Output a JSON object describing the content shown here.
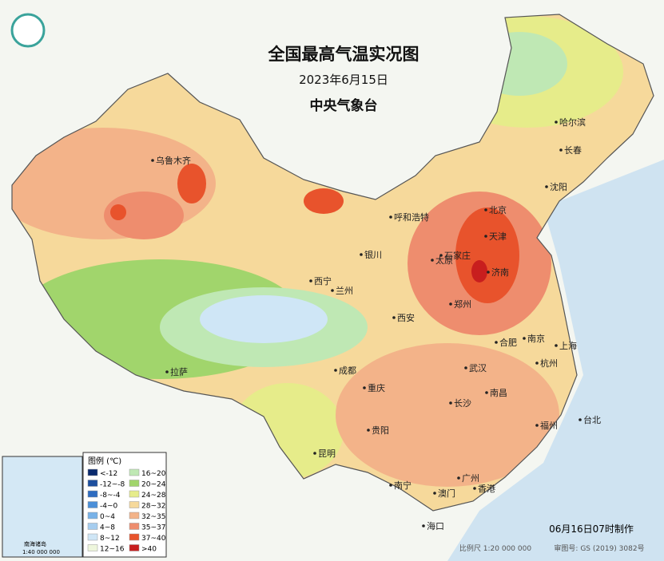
{
  "header": {
    "title": "全国最高气温实况图",
    "date": "2023年6月15日",
    "agency": "中央气象台"
  },
  "cities": [
    "哈尔滨",
    "长春",
    "沈阳",
    "乌鲁木齐",
    "呼和浩特",
    "北京",
    "天津",
    "银川",
    "太原",
    "石家庄",
    "西宁",
    "兰州",
    "济南",
    "郑州",
    "西安",
    "合肥",
    "南京",
    "上海",
    "拉萨",
    "武汉",
    "杭州",
    "成都",
    "重庆",
    "南昌",
    "长沙",
    "贵阳",
    "福州",
    "台北",
    "昆明",
    "南宁",
    "广州",
    "香港",
    "澳门",
    "海口"
  ],
  "legend": {
    "title": "图例 (℃)",
    "items": [
      {
        "label": "<-12",
        "color": "#0a2a6e"
      },
      {
        "label": "-12~-8",
        "color": "#1d4f9e"
      },
      {
        "label": "-8~-4",
        "color": "#2e6cc0"
      },
      {
        "label": "-4~0",
        "color": "#4b8fd8"
      },
      {
        "label": "0~4",
        "color": "#78b2e8"
      },
      {
        "label": "4~8",
        "color": "#a6cdef"
      },
      {
        "label": "8~12",
        "color": "#cfe6f6"
      },
      {
        "label": "12~16",
        "color": "#eef6dc"
      },
      {
        "label": "16~20",
        "color": "#bfe8b4"
      },
      {
        "label": "20~24",
        "color": "#a1d56c"
      },
      {
        "label": "24~28",
        "color": "#e6ec8a"
      },
      {
        "label": "28~32",
        "color": "#f6d99b"
      },
      {
        "label": "32~35",
        "color": "#f3b389"
      },
      {
        "label": "35~37",
        "color": "#ee8d6e"
      },
      {
        "label": "37~40",
        "color": "#e8532c"
      },
      {
        "label": ">40",
        "color": "#c81e1e"
      }
    ]
  },
  "inset": {
    "title": "南海诸岛",
    "scale": "1:40 000 000"
  },
  "footer": {
    "made": "06月16日07时制作",
    "scale": "比例尺 1:20 000 000",
    "approval": "审图号: GS (2019) 3082号"
  }
}
